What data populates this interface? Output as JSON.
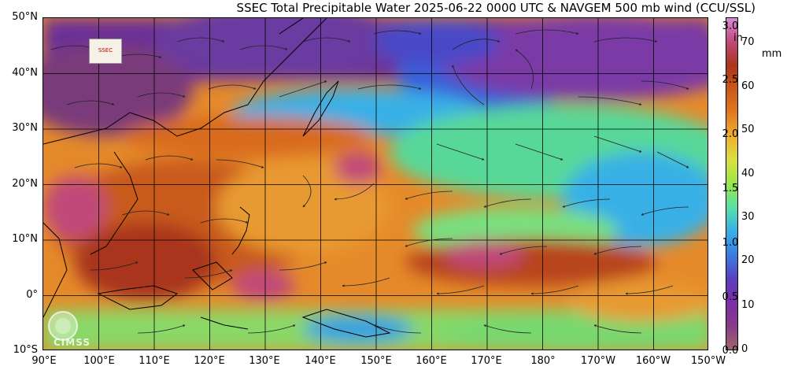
{
  "title": "SSEC Total Precipitable Water  2025-06-22 0000 UTC & NAVGEM 500 mb wind (CCU/SSL)",
  "map": {
    "lat_labels": [
      "50°N",
      "40°N",
      "30°N",
      "20°N",
      "10°N",
      "0°",
      "10°S"
    ],
    "lon_labels": [
      "90°E",
      "100°E",
      "110°E",
      "120°E",
      "130°E",
      "140°E",
      "150°E",
      "160°E",
      "170°E",
      "180°",
      "170°W",
      "160°W",
      "150°W"
    ],
    "lat_range": [
      -10,
      50
    ],
    "lon_range": [
      90,
      210
    ]
  },
  "colorbar": {
    "unit_in": "in",
    "unit_mm": "mm",
    "in_ticks": [
      "3.0",
      "2.5",
      "2.0",
      "1.5",
      "1.0",
      "0.5",
      "0.0"
    ],
    "mm_ticks": [
      "70",
      "60",
      "50",
      "40",
      "30",
      "20",
      "10",
      "0"
    ],
    "colors": [
      "#9a6a6a",
      "#8a3a8a",
      "#7a2fa6",
      "#5a3fc0",
      "#3a7de0",
      "#38b0e6",
      "#58e0a8",
      "#9ae64a",
      "#d8e040",
      "#f0b030",
      "#e07a20",
      "#c85a1a",
      "#a8351a",
      "#c04a7a",
      "#d88ad8"
    ]
  },
  "logos": {
    "cimss_text": "CIMSS",
    "ssec_text": "SSEC"
  },
  "colors": {
    "blue_moist_low": "#3a5fd8",
    "purple_dry": "#6a2f9a",
    "orange_moist": "#e07a20",
    "green_mid": "#58d898",
    "cyan": "#38b0e6"
  }
}
